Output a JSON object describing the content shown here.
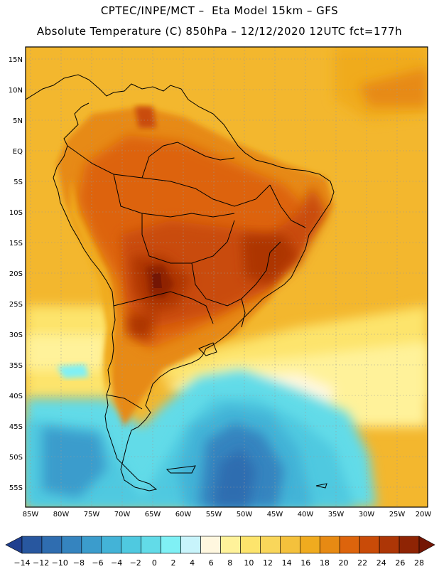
{
  "header": {
    "line1": "CPTEC/INPE/MCT –  Eta Model 15km – GFS",
    "line2": "Absolute Temperature (C) 850hPa – 12/12/2020 12UTC fct=177h"
  },
  "map": {
    "region": "South America",
    "variable": "Absolute Temperature (C)",
    "level": "850hPa",
    "lat_labels": [
      "15N",
      "10N",
      "5N",
      "EQ",
      "5S",
      "10S",
      "15S",
      "20S",
      "25S",
      "30S",
      "35S",
      "40S",
      "45S",
      "50S",
      "55S"
    ],
    "lon_labels": [
      "85W",
      "80W",
      "75W",
      "70W",
      "65W",
      "60W",
      "55W",
      "50W",
      "45W",
      "40W",
      "35W",
      "30W",
      "25W",
      "20W"
    ]
  },
  "colorbar": {
    "labels": [
      "-14",
      "-12",
      "-10",
      "-8",
      "-6",
      "-4",
      "-2",
      "0",
      "2",
      "4",
      "6",
      "8",
      "10",
      "12",
      "14",
      "16",
      "18",
      "20",
      "22",
      "24",
      "26",
      "28"
    ],
    "colors": [
      "#1f3f8f",
      "#28579f",
      "#2f6db0",
      "#3584bf",
      "#3b9ccc",
      "#43b3d7",
      "#4fc9e0",
      "#62dbe8",
      "#7ff0f5",
      "#c8f4fb",
      "#fff7df",
      "#fff29a",
      "#fde46c",
      "#f9d65a",
      "#f4c13c",
      "#f0ab1f",
      "#e78a13",
      "#dd640c",
      "#c94b08",
      "#ad3606",
      "#8f2404",
      "#741604"
    ]
  }
}
